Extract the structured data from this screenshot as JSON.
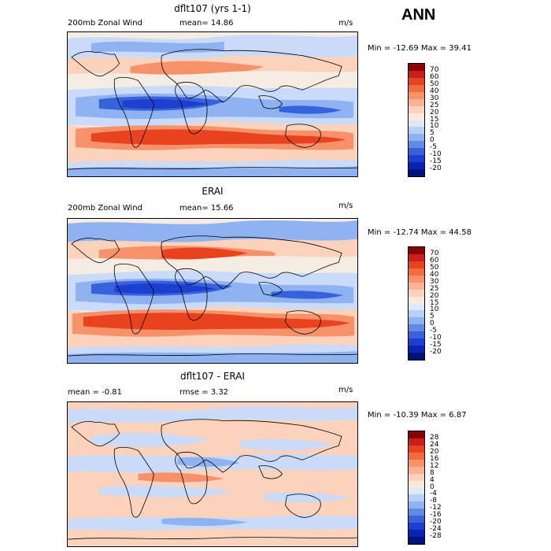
{
  "season": "ANN",
  "panels": [
    {
      "title": "dflt107 (yrs 1-1)",
      "left_label": "200mb Zonal Wind",
      "stat1": "mean=  14.86",
      "units": "m/s",
      "minmax": "Min = -12.69 Max =  39.41",
      "colorbar": {
        "labels": [
          "70",
          "60",
          "50",
          "40",
          "30",
          "25",
          "20",
          "15",
          "10",
          "5",
          "0",
          "-5",
          "-10",
          "-15",
          "-20"
        ],
        "colors": [
          "#8b0000",
          "#c81e1e",
          "#e8421f",
          "#f26b3a",
          "#f6916a",
          "#f9b394",
          "#fbd3bd",
          "#fbe9dd",
          "#dde9fb",
          "#b8d0f7",
          "#8fb2f0",
          "#6289e6",
          "#3862dc",
          "#1c3fcf",
          "#0b22b3",
          "#00137a"
        ]
      }
    },
    {
      "title": "ERAI",
      "left_label": "200mb Zonal Wind",
      "stat1": "mean=  15.66",
      "units": "m/s",
      "minmax": "Min = -12.74 Max =  44.58",
      "colorbar": {
        "labels": [
          "70",
          "60",
          "50",
          "40",
          "30",
          "25",
          "20",
          "15",
          "10",
          "5",
          "0",
          "-5",
          "-10",
          "-15",
          "-20"
        ],
        "colors": [
          "#8b0000",
          "#c81e1e",
          "#e8421f",
          "#f26b3a",
          "#f6916a",
          "#f9b394",
          "#fbd3bd",
          "#fbe9dd",
          "#dde9fb",
          "#b8d0f7",
          "#8fb2f0",
          "#6289e6",
          "#3862dc",
          "#1c3fcf",
          "#0b22b3",
          "#00137a"
        ]
      }
    },
    {
      "title": "dflt107 - ERAI",
      "left_label": "mean =  -0.81",
      "stat1": "rmse =   3.32",
      "units": "m/s",
      "minmax": "Min = -10.39 Max =   6.87",
      "colorbar": {
        "labels": [
          "28",
          "24",
          "20",
          "16",
          "12",
          "8",
          "4",
          "0",
          "-4",
          "-8",
          "-12",
          "-16",
          "-20",
          "-24",
          "-28"
        ],
        "colors": [
          "#8b0000",
          "#c81e1e",
          "#e8421f",
          "#f26b3a",
          "#f6916a",
          "#f9b394",
          "#fbd3bd",
          "#fbe9dd",
          "#dde9fb",
          "#b8d0f7",
          "#8fb2f0",
          "#6289e6",
          "#3862dc",
          "#1c3fcf",
          "#0b22b3",
          "#00137a"
        ]
      }
    }
  ],
  "palette": {
    "strong_east": "#e8421f",
    "mod_east": "#f6916a",
    "weak_east": "#fbd3bd",
    "near_zero": "#f5ece4",
    "weak_west": "#c9dbf8",
    "mod_west": "#8fb2f0",
    "strong_west": "#3862dc",
    "deep_west": "#1c3fcf",
    "coast": "#000000"
  }
}
